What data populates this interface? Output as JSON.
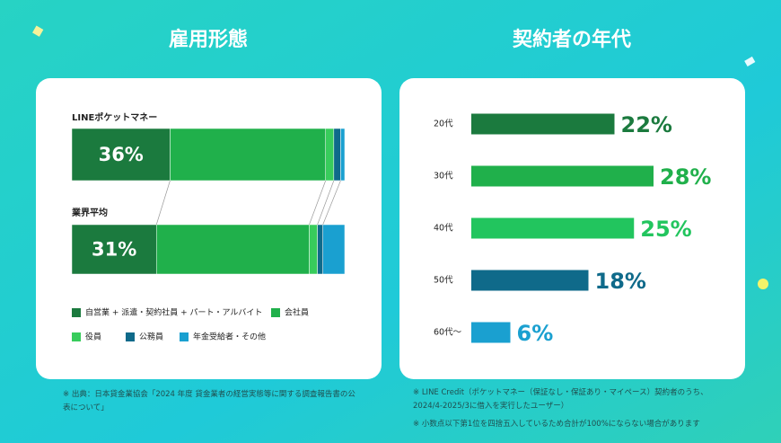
{
  "chart_data": [
    {
      "type": "stacked_bar_h",
      "title": "雇用形態",
      "categories": [
        "LINEポケットマネー",
        "業界平均"
      ],
      "series": [
        {
          "name": "自営業 + 派遣・契約社員 + パート・アルバイト",
          "color": "#1b7a3e",
          "values": [
            36,
            31
          ],
          "value_labels": [
            "36%",
            "31%"
          ]
        },
        {
          "name": "会社員",
          "color": "#20b04b",
          "values": [
            57,
            56
          ]
        },
        {
          "name": "役員",
          "color": "#38cc5c",
          "values": [
            3,
            3
          ]
        },
        {
          "name": "公務員",
          "color": "#0f6a8a",
          "values": [
            2.5,
            2
          ]
        },
        {
          "name": "年金受給者・その他",
          "color": "#1aa0d0",
          "values": [
            1.5,
            8
          ]
        }
      ]
    },
    {
      "type": "bar_h",
      "title": "契約者の年代",
      "categories": [
        "20代",
        "30代",
        "40代",
        "50代",
        "60代〜"
      ],
      "values": [
        22,
        28,
        25,
        18,
        6
      ],
      "value_labels": [
        "22%",
        "28%",
        "25%",
        "18%",
        "6%"
      ],
      "colors": [
        "#1b7a3e",
        "#20b04b",
        "#22c55e",
        "#0f6a8a",
        "#1aa0d0"
      ]
    }
  ],
  "notes": {
    "left": [
      "※ 出典：日本貸金業協会「2024 年度 貸金業者の経営実態等に関する調査報告書の公表について」"
    ],
    "right": [
      "※ LINE Credit（ポケットマネー（保証なし・保証あり・マイペース）契約者のうち、2024/4-2025/3に借入を実行したユーザー）",
      "※ 小数点以下第1位を四捨五入しているため合計が100%にならない場合があります"
    ]
  }
}
